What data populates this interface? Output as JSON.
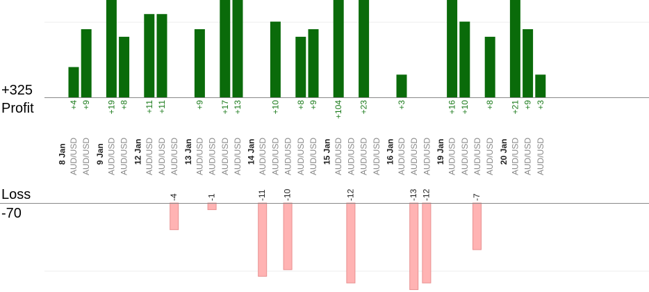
{
  "summary": {
    "profit_total": "+325",
    "profit_label": "Profit",
    "loss_label": "Loss",
    "loss_total": "-70"
  },
  "colors": {
    "profit": "#0a6b0a",
    "profit_text": "#1a7a1a",
    "loss_fill": "#ffb3b3",
    "loss_stroke": "#e89090",
    "loss_text": "#222222",
    "axis": "#888888",
    "grid": "#eeeeee",
    "pair_text": "#888888",
    "date_text": "#222222"
  },
  "chart_data": {
    "type": "bar",
    "title": "",
    "profit_axis_max": 25,
    "loss_axis_max": 12,
    "days": [
      {
        "date": "8 Jan",
        "trades": [
          {
            "pair": "AUD/USD",
            "value": 4
          },
          {
            "pair": "AUD/USD",
            "value": 9
          }
        ]
      },
      {
        "date": "9 Jan",
        "trades": [
          {
            "pair": "AUD/USD",
            "value": 19
          },
          {
            "pair": "AUD/USD",
            "value": 8
          }
        ]
      },
      {
        "date": "12 Jan",
        "trades": [
          {
            "pair": "AUD/USD",
            "value": 11
          },
          {
            "pair": "AUD/USD",
            "value": 11
          },
          {
            "pair": "AUD/USD",
            "value": -4
          }
        ]
      },
      {
        "date": "13 Jan",
        "trades": [
          {
            "pair": "AUD/USD",
            "value": 9
          },
          {
            "pair": "AUD/USD",
            "value": -1
          },
          {
            "pair": "AUD/USD",
            "value": 17
          },
          {
            "pair": "AUD/USD",
            "value": 13
          }
        ]
      },
      {
        "date": "14 Jan",
        "trades": [
          {
            "pair": "AUD/USD",
            "value": -11
          },
          {
            "pair": "AUD/USD",
            "value": 10
          },
          {
            "pair": "AUD/USD",
            "value": -10
          },
          {
            "pair": "AUD/USD",
            "value": 8
          },
          {
            "pair": "AUD/USD",
            "value": 9
          }
        ]
      },
      {
        "date": "15 Jan",
        "trades": [
          {
            "pair": "AUD/USD",
            "value": 104
          },
          {
            "pair": "AUD/USD",
            "value": -12
          },
          {
            "pair": "AUD/USD",
            "value": 23
          },
          {
            "pair": "AUD/USD",
            "value": null
          }
        ]
      },
      {
        "date": "16 Jan",
        "trades": [
          {
            "pair": "AUD/USD",
            "value": 3
          },
          {
            "pair": "AUD/USD",
            "value": -13
          },
          {
            "pair": "AUD/USD",
            "value": -12
          }
        ]
      },
      {
        "date": "19 Jan",
        "trades": [
          {
            "pair": "AUD/USD",
            "value": 16
          },
          {
            "pair": "AUD/USD",
            "value": 10
          },
          {
            "pair": "AUD/USD",
            "value": -7
          },
          {
            "pair": "AUD/USD",
            "value": 8
          }
        ]
      },
      {
        "date": "20 Jan",
        "trades": [
          {
            "pair": "AUD/USD",
            "value": 21
          },
          {
            "pair": "AUD/USD",
            "value": 9
          },
          {
            "pair": "AUD/USD",
            "value": 3
          }
        ]
      }
    ]
  }
}
